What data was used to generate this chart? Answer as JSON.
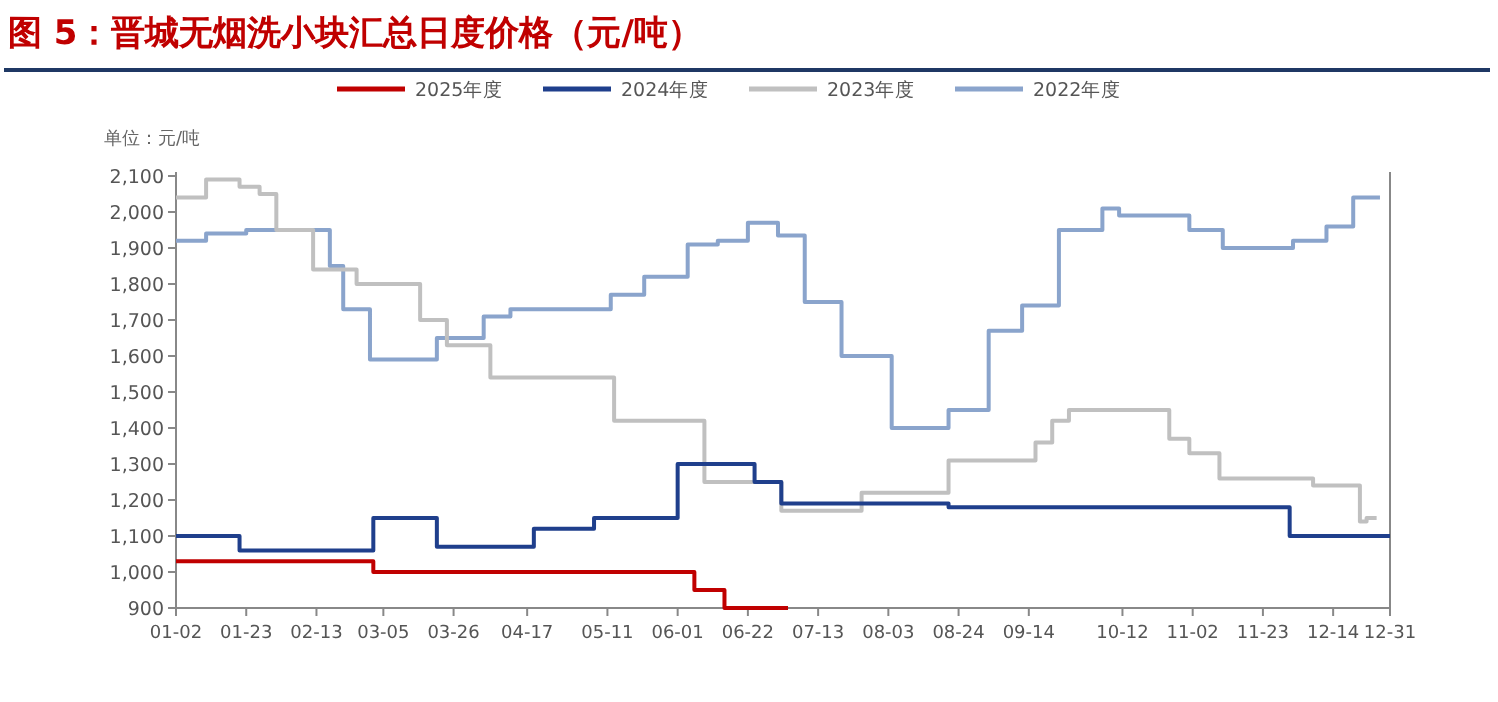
{
  "chart_data": {
    "type": "line",
    "title": "图 5：晋城无烟洗小块汇总日度价格（元/吨）",
    "ylabel": "单位：元/吨",
    "legend": "top",
    "xlim": [
      "--01-02",
      "--12-31"
    ],
    "xticks": [
      {
        "value": "--01-02",
        "label": "01-02"
      },
      {
        "value": "--01-23",
        "label": "01-23"
      },
      {
        "value": "--02-13",
        "label": "02-13"
      },
      {
        "value": "--03-05",
        "label": "03-05"
      },
      {
        "value": "--03-26",
        "label": "03-26"
      },
      {
        "value": "--04-17",
        "label": "04-17"
      },
      {
        "value": "--05-11",
        "label": "05-11"
      },
      {
        "value": "--06-01",
        "label": "06-01"
      },
      {
        "value": "--06-22",
        "label": "06-22"
      },
      {
        "value": "--07-13",
        "label": "07-13"
      },
      {
        "value": "--08-03",
        "label": "08-03"
      },
      {
        "value": "--08-24",
        "label": "08-24"
      },
      {
        "value": "--09-14",
        "label": "09-14"
      },
      {
        "value": "--10-12",
        "label": "10-12"
      },
      {
        "value": "--11-02",
        "label": "11-02"
      },
      {
        "value": "--11-23",
        "label": "11-23"
      },
      {
        "value": "--12-14",
        "label": "12-14"
      },
      {
        "value": "--12-31",
        "label": "12-31"
      }
    ],
    "ylim": [
      900,
      2100
    ],
    "yticks": [
      {
        "value": 900,
        "label": "900"
      },
      {
        "value": 1000,
        "label": "1,000"
      },
      {
        "value": 1100,
        "label": "1,100"
      },
      {
        "value": 1200,
        "label": "1,200"
      },
      {
        "value": 1300,
        "label": "1,300"
      },
      {
        "value": 1400,
        "label": "1,400"
      },
      {
        "value": 1500,
        "label": "1,500"
      },
      {
        "value": 1600,
        "label": "1,600"
      },
      {
        "value": 1700,
        "label": "1,700"
      },
      {
        "value": 1800,
        "label": "1,800"
      },
      {
        "value": 1900,
        "label": "1,900"
      },
      {
        "value": 2000,
        "label": "2,000"
      },
      {
        "value": 2100,
        "label": "2,100"
      }
    ],
    "series": [
      {
        "name": "2025年度",
        "type": "step",
        "color": "#c00000",
        "x": [
          "--01-02",
          "--03-02",
          "--06-06",
          "--06-15",
          "--07-04"
        ],
        "values": [
          1030,
          1000,
          950,
          900,
          900
        ]
      },
      {
        "name": "2024年度",
        "type": "step",
        "color": "#1f3f8c",
        "x": [
          "--01-02",
          "--01-21",
          "--03-02",
          "--03-21",
          "--04-19",
          "--05-07",
          "--06-01",
          "--06-24",
          "--07-02",
          "--08-21",
          "--12-01",
          "--12-31"
        ],
        "values": [
          1100,
          1060,
          1150,
          1070,
          1120,
          1150,
          1300,
          1250,
          1190,
          1180,
          1100,
          1100
        ]
      },
      {
        "name": "2023年度",
        "type": "step",
        "color": "#c0c0c0",
        "x": [
          "--01-02",
          "--01-11",
          "--01-21",
          "--01-27",
          "--02-01",
          "--02-12",
          "--02-25",
          "--03-16",
          "--03-24",
          "--04-06",
          "--05-13",
          "--06-09",
          "--07-02",
          "--07-26",
          "--08-21",
          "--09-16",
          "--09-21",
          "--09-26",
          "--10-26",
          "--11-01",
          "--11-10",
          "--12-08",
          "--12-22",
          "--12-24",
          "--12-27"
        ],
        "values": [
          2040,
          2090,
          2070,
          2050,
          1950,
          1840,
          1800,
          1700,
          1630,
          1540,
          1420,
          1250,
          1170,
          1220,
          1310,
          1360,
          1420,
          1450,
          1370,
          1330,
          1260,
          1240,
          1140,
          1150,
          1150
        ]
      },
      {
        "name": "2022年度",
        "type": "step",
        "color": "#8aa4cc",
        "x": [
          "--01-02",
          "--01-11",
          "--01-23",
          "--02-17",
          "--02-21",
          "--03-01",
          "--03-21",
          "--04-04",
          "--04-12",
          "--05-12",
          "--05-22",
          "--06-04",
          "--06-13",
          "--06-22",
          "--07-01",
          "--07-09",
          "--07-20",
          "--08-04",
          "--08-21",
          "--09-02",
          "--09-12",
          "--09-23",
          "--10-06",
          "--10-11",
          "--11-01",
          "--11-11",
          "--12-02",
          "--12-12",
          "--12-20",
          "--12-28"
        ],
        "values": [
          1920,
          1940,
          1950,
          1850,
          1730,
          1590,
          1650,
          1710,
          1730,
          1770,
          1820,
          1910,
          1920,
          1970,
          1935,
          1750,
          1600,
          1400,
          1450,
          1670,
          1740,
          1950,
          2010,
          1990,
          1950,
          1900,
          1920,
          1960,
          2040,
          2040
        ]
      }
    ]
  }
}
